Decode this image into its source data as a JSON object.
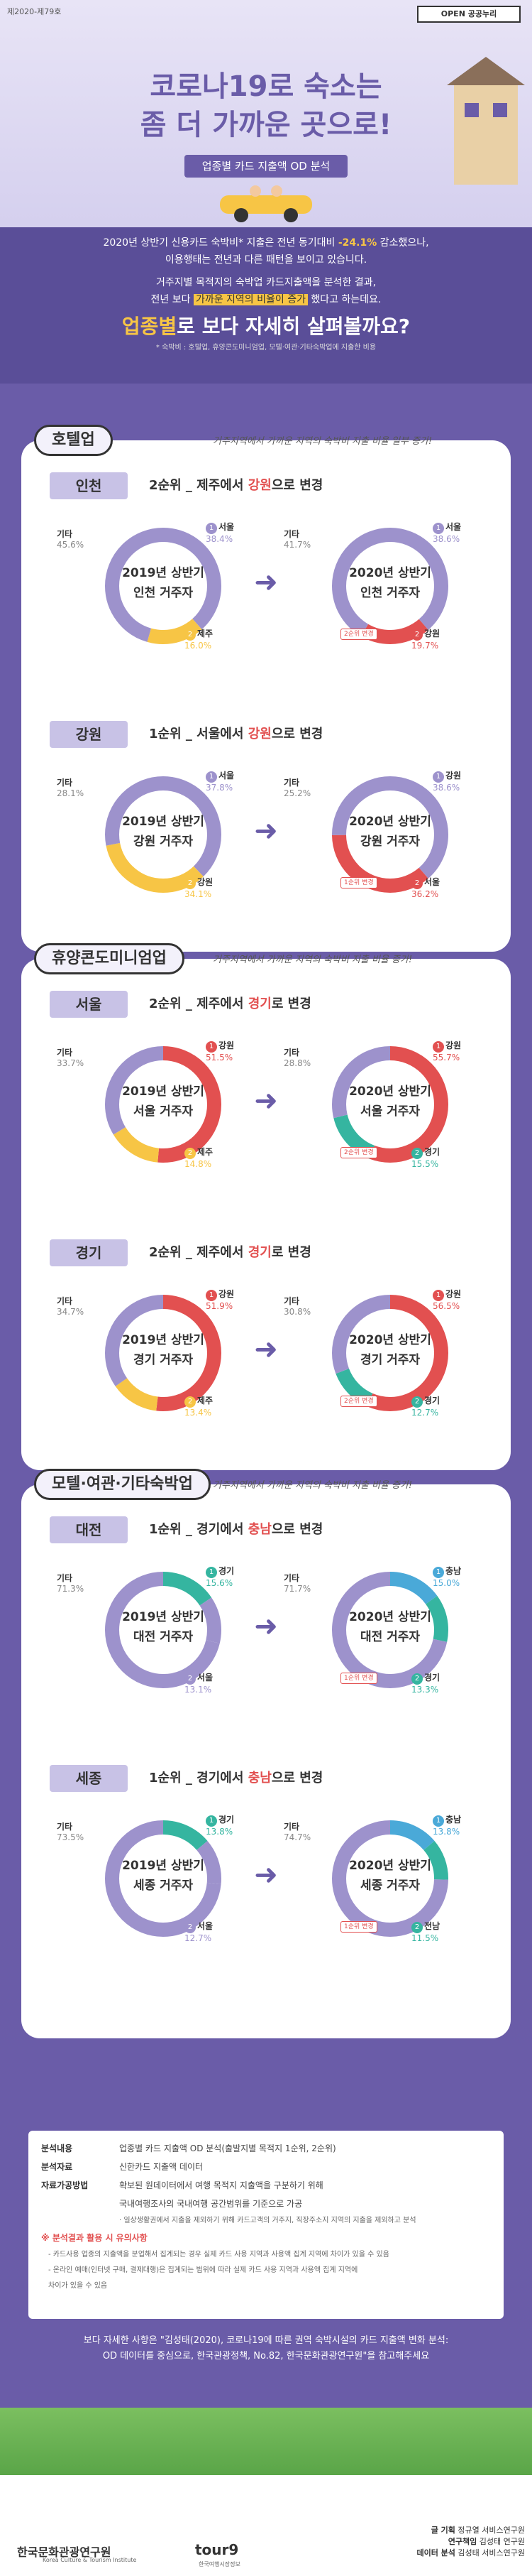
{
  "header": {
    "doc_id": "제2020-제79호",
    "badge": "OPEN 공공누리",
    "title1": "코로나19로 숙소는",
    "title2": "좀 더 가까운 곳으로!",
    "subtitle": "업종별 카드 지출액 OD 분석"
  },
  "intro": {
    "l1a": "2020년 상반기 신용카드 숙박비* 지출은 전년 동기대비 ",
    "l1b": "-24.1%",
    "l1c": " 감소했으나,",
    "l2": "이용행태는 전년과 다른 패턴을 보이고 있습니다.",
    "l3": "거주지별 목적지의 숙박업 카드지출액을 분석한 결과,",
    "l4a": "전년 보다 ",
    "l4b": "가까운 지역의 비율이 증가",
    "l4c": " 했다고 하는데요.",
    "big1": "업종별",
    "big2": "로 보다 자세히 살펴볼까요?",
    "note": "* 숙박비 : 호텔업, 휴양콘도미니엄업, 모텔·여관·기타숙박업에 지출한 비용"
  },
  "sections": [
    {
      "tag": "호텔업",
      "note": "거주지역에서 가까운 지역의 숙박비 지출 비율 일부 증가!",
      "cities": [
        {
          "name": "인천",
          "change_a": "2순위 _ 제주에서 ",
          "change_b": "강원",
          "change_c": "으로 변경",
          "left": {
            "center1": "2019년 상반기",
            "center2": "인천 거주자",
            "labels": [
              {
                "text": "서울",
                "val": "38.4%",
                "rank": "1"
              },
              {
                "text": "제주",
                "val": "16.0%",
                "rank": "2"
              },
              {
                "text": "기타",
                "val": "45.6%",
                "rank": ""
              }
            ]
          },
          "right": {
            "center1": "2020년 상반기",
            "center2": "인천 거주자",
            "chip": "2순위 변경",
            "labels": [
              {
                "text": "서울",
                "val": "38.6%",
                "rank": "1"
              },
              {
                "text": "강원",
                "val": "19.7%",
                "rank": "2"
              },
              {
                "text": "기타",
                "val": "41.7%",
                "rank": ""
              }
            ]
          }
        },
        {
          "name": "강원",
          "change_a": "1순위 _ 서울에서 ",
          "change_b": "강원",
          "change_c": "으로 변경",
          "left": {
            "center1": "2019년 상반기",
            "center2": "강원 거주자",
            "labels": [
              {
                "text": "서울",
                "val": "37.8%",
                "rank": "1"
              },
              {
                "text": "강원",
                "val": "34.1%",
                "rank": "2"
              },
              {
                "text": "기타",
                "val": "28.1%",
                "rank": ""
              }
            ]
          },
          "right": {
            "center1": "2020년 상반기",
            "center2": "강원 거주자",
            "chip": "1순위 변경",
            "labels": [
              {
                "text": "강원",
                "val": "38.6%",
                "rank": "1"
              },
              {
                "text": "서울",
                "val": "36.2%",
                "rank": "2"
              },
              {
                "text": "기타",
                "val": "25.2%",
                "rank": ""
              }
            ]
          }
        }
      ]
    },
    {
      "tag": "휴양콘도미니엄업",
      "note": "거주지역에서 가까운 지역의 숙박비 지출 비율 증가!",
      "cities": [
        {
          "name": "서울",
          "change_a": "2순위 _ 제주에서 ",
          "change_b": "경기",
          "change_c": "로 변경",
          "left": {
            "center1": "2019년 상반기",
            "center2": "서울 거주자",
            "labels": [
              {
                "text": "강원",
                "val": "51.5%",
                "rank": "1"
              },
              {
                "text": "제주",
                "val": "14.8%",
                "rank": "2"
              },
              {
                "text": "기타",
                "val": "33.7%",
                "rank": ""
              }
            ]
          },
          "right": {
            "center1": "2020년 상반기",
            "center2": "서울 거주자",
            "chip": "2순위 변경",
            "labels": [
              {
                "text": "강원",
                "val": "55.7%",
                "rank": "1"
              },
              {
                "text": "경기",
                "val": "15.5%",
                "rank": "2"
              },
              {
                "text": "기타",
                "val": "28.8%",
                "rank": ""
              }
            ]
          }
        },
        {
          "name": "경기",
          "change_a": "2순위 _ 제주에서 ",
          "change_b": "경기",
          "change_c": "로 변경",
          "left": {
            "center1": "2019년 상반기",
            "center2": "경기 거주자",
            "labels": [
              {
                "text": "강원",
                "val": "51.9%",
                "rank": "1"
              },
              {
                "text": "제주",
                "val": "13.4%",
                "rank": "2"
              },
              {
                "text": "기타",
                "val": "34.7%",
                "rank": ""
              }
            ]
          },
          "right": {
            "center1": "2020년 상반기",
            "center2": "경기 거주자",
            "chip": "2순위 변경",
            "labels": [
              {
                "text": "강원",
                "val": "56.5%",
                "rank": "1"
              },
              {
                "text": "경기",
                "val": "12.7%",
                "rank": "2"
              },
              {
                "text": "기타",
                "val": "30.8%",
                "rank": ""
              }
            ]
          }
        }
      ]
    },
    {
      "tag": "모텔·여관·기타숙박업",
      "note": "거주지역에서 가까운 지역의 숙박비 지출 비율 증가!",
      "cities": [
        {
          "name": "대전",
          "change_a": "1순위 _ 경기에서 ",
          "change_b": "충남",
          "change_c": "으로 변경",
          "left": {
            "center1": "2019년 상반기",
            "center2": "대전 거주자",
            "labels": [
              {
                "text": "경기",
                "val": "15.6%",
                "rank": "1"
              },
              {
                "text": "서울",
                "val": "13.1%",
                "rank": "2"
              },
              {
                "text": "기타",
                "val": "71.3%",
                "rank": ""
              }
            ]
          },
          "right": {
            "center1": "2020년 상반기",
            "center2": "대전 거주자",
            "chip": "1순위 변경",
            "labels": [
              {
                "text": "충남",
                "val": "15.0%",
                "rank": "1"
              },
              {
                "text": "경기",
                "val": "13.3%",
                "rank": "2"
              },
              {
                "text": "기타",
                "val": "71.7%",
                "rank": ""
              }
            ]
          }
        },
        {
          "name": "세종",
          "change_a": "1순위 _ 경기에서 ",
          "change_b": "충남",
          "change_c": "으로 변경",
          "left": {
            "center1": "2019년 상반기",
            "center2": "세종 거주자",
            "labels": [
              {
                "text": "경기",
                "val": "13.8%",
                "rank": "1"
              },
              {
                "text": "서울",
                "val": "12.7%",
                "rank": "2"
              },
              {
                "text": "기타",
                "val": "73.5%",
                "rank": ""
              }
            ]
          },
          "right": {
            "center1": "2020년 상반기",
            "center2": "세종 거주자",
            "chip": "1순위 변경",
            "labels": [
              {
                "text": "충남",
                "val": "13.8%",
                "rank": "1"
              },
              {
                "text": "전남",
                "val": "11.5%",
                "rank": "2"
              },
              {
                "text": "기타",
                "val": "74.7%",
                "rank": ""
              }
            ]
          }
        }
      ]
    }
  ],
  "analysis": {
    "r1k": "분석내용",
    "r1v": "업종별 카드 지출액 OD 분석(출발지별 목적지 1순위, 2순위)",
    "r2k": "분석자료",
    "r2v": "신한카드 지출액 데이터",
    "r3k": "자료가공방법",
    "r3v": "확보된 원데이터에서 여행 목적지 지출액을 구분하기 위해",
    "r3v2": "국내여행조사의 국내여행 공간범위를 기준으로 가공",
    "r3v3": "· 일상생활권에서 지출을 제외하기 위해 카드고객의 거주지, 직장주소지 지역의 지출을 제외하고 분석",
    "warn": "※ 분석결과 활용 시 유의사항",
    "w1": "- 카드사용 업종의 지출액을 분업해서 집계되는 경우 실제 카드 사용 지역과 사용액 집계 지역에 차이가 있을 수 있음",
    "w2": "- 온라인 예매(인터넷 구매, 결제대행)은 집계되는 범위에 따라 실제 카드 사용 지역과 사용액 집계 지역에",
    "w3": "차이가 있을 수 있음"
  },
  "more": {
    "l1": "보다 자세한 사항은 \"김성태(2020), 코로나19에 따른 권역 숙박시설의 카드 지출액 변화 분석:",
    "l2": "OD 데이터를 중심으로, 한국관광정책, No.82, 한국문화관광연구원\"을 참고해주세요"
  },
  "footer": {
    "org": "한국문화관광연구원",
    "org_en": "Korea Culture & Tourism Institute",
    "tour": "tour9",
    "tour_sub": "한국여행시장정보",
    "c1k": "글 기획",
    "c1v": "정규열 서비스연구원",
    "c2k": "연구책임",
    "c2v": "김성태 연구원",
    "c3k": "데이터 분석",
    "c3v": "김성태 서비스연구원"
  }
}
